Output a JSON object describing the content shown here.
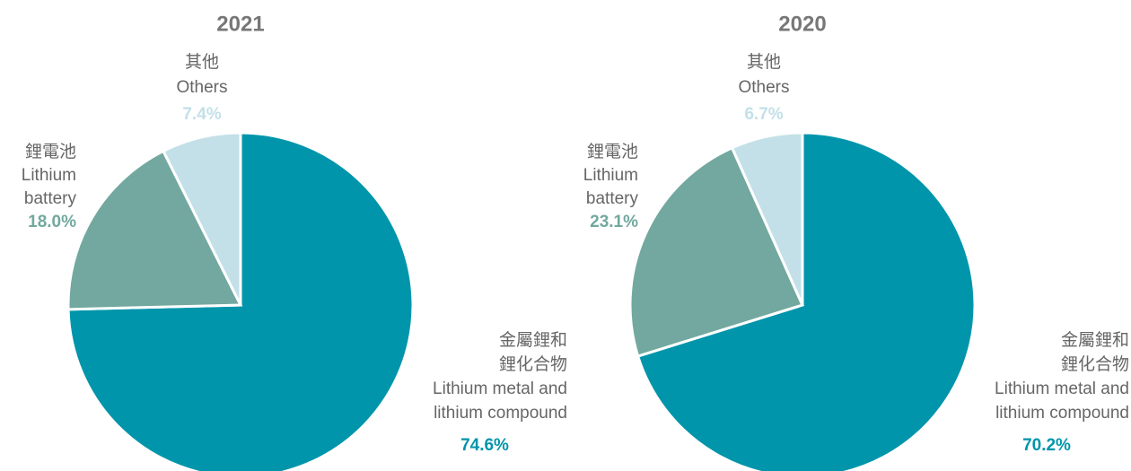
{
  "chart_data": [
    {
      "type": "pie",
      "title": "2021",
      "categories": [
        [
          "金屬鋰和",
          "鋰化合物",
          "Lithium metal and",
          "lithium compound"
        ],
        [
          "鋰電池",
          "Lithium",
          "battery"
        ],
        [
          "其他",
          "Others"
        ]
      ],
      "values": [
        74.6,
        18.0,
        7.4
      ],
      "value_labels": [
        "74.6%",
        "18.0%",
        "7.4%"
      ],
      "colors": [
        "#0095ab",
        "#72a89f",
        "#c3e0e8"
      ]
    },
    {
      "type": "pie",
      "title": "2020",
      "categories": [
        [
          "金屬鋰和",
          "鋰化合物",
          "Lithium metal and",
          "lithium compound"
        ],
        [
          "鋰電池",
          "Lithium",
          "battery"
        ],
        [
          "其他",
          "Others"
        ]
      ],
      "values": [
        70.2,
        23.1,
        6.7
      ],
      "value_labels": [
        "70.2%",
        "23.1%",
        "6.7%"
      ],
      "colors": [
        "#0095ab",
        "#72a89f",
        "#c3e0e8"
      ]
    }
  ]
}
